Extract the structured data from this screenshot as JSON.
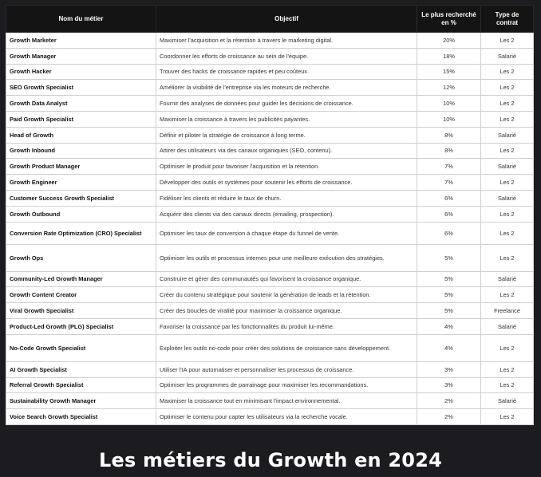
{
  "header": {
    "col_job": "Nom du métier",
    "col_objective": "Objectif",
    "col_percent": "Le plus recherché en %",
    "col_contract": "Type de contrat"
  },
  "rows": [
    {
      "job": "Growth Marketer",
      "objective": "Maximiser l'acquisition et la rétention à  travers le marketing digital.",
      "percent": "20%",
      "contract": "Les 2"
    },
    {
      "job": "Growth Manager",
      "objective": "Coordonner les efforts de croissance au sein de l'équipe.",
      "percent": "18%",
      "contract": "Salarié"
    },
    {
      "job": "Growth Hacker",
      "objective": "Trouver des hacks de croissance rapides et peu coûteux.",
      "percent": "15%",
      "contract": "Les 2"
    },
    {
      "job": "SEO Growth Specialist",
      "objective": "Améliorer la visibilité de l'entreprise via les moteurs de recherche.",
      "percent": "12%",
      "contract": "Les 2"
    },
    {
      "job": "Growth Data Analyst",
      "objective": "Fournir des analyses de données pour guider les décisions de croissance.",
      "percent": "10%",
      "contract": "Les 2"
    },
    {
      "job": "Paid Growth Specialist",
      "objective": "Maximiser la croissance à  travers les publicités payantes.",
      "percent": "10%",
      "contract": "Les 2"
    },
    {
      "job": "Head of Growth",
      "objective": "Définir et piloter la stratégie de croissance à  long terme.",
      "percent": "8%",
      "contract": "Salarié"
    },
    {
      "job": "Growth Inbound",
      "objective": "Attirer des utilisateurs via des canaux organiques (SEO, contenu).",
      "percent": "8%",
      "contract": "Les 2"
    },
    {
      "job": "Growth Product Manager",
      "objective": "Optimiser le produit pour favoriser l'acquisition et la rétention.",
      "percent": "7%",
      "contract": "Salarié"
    },
    {
      "job": "Growth Engineer",
      "objective": "Développer des outils et systèmes pour soutenir les efforts de croissance.",
      "percent": "7%",
      "contract": "Les 2"
    },
    {
      "job": "Customer Success Growth Specialist",
      "objective": "Fidéliser les clients et réduire le taux de churn.",
      "percent": "6%",
      "contract": "Salarié"
    },
    {
      "job": "Growth Outbound",
      "objective": "Acquérir des clients via des canaux directs (emailing, prospection).",
      "percent": "6%",
      "contract": "Les 2"
    },
    {
      "job": "Conversion Rate Optimization (CRO) Specialist",
      "objective": "Optimiser les taux de conversion à  chaque étape du funnel de vente.",
      "percent": "6%",
      "contract": "Les 2"
    },
    {
      "job": "Growth Ops",
      "objective": "Optimiser les outils et processus internes pour une meilleure exécution des stratégies.",
      "percent": "5%",
      "contract": "Les 2"
    },
    {
      "job": "Community-Led Growth Manager",
      "objective": "Construire et gérer des communautés qui favorisent la croissance organique.",
      "percent": "5%",
      "contract": "Salarié"
    },
    {
      "job": "Growth Content Creator",
      "objective": "Créer du contenu stratégique pour soutenir la génération de leads et la rétention.",
      "percent": "5%",
      "contract": "Les 2"
    },
    {
      "job": "Viral Growth Specialist",
      "objective": "Créer des boucles de viralité pour maximiser la croissance organique.",
      "percent": "5%",
      "contract": "Freelance"
    },
    {
      "job": "Product-Led Growth (PLG) Specialist",
      "objective": "Favoriser la croissance par les fonctionnalités du produit lui-même.",
      "percent": "4%",
      "contract": "Salarié"
    },
    {
      "job": "No-Code Growth Specialist",
      "objective": "Exploiter les outils no-code pour créer des solutions de croissance sans développement.",
      "percent": "4%",
      "contract": "Les 2"
    },
    {
      "job": "AI Growth Specialist",
      "objective": "Utiliser l'IA pour automatiser et personnaliser les processus de croissance.",
      "percent": "3%",
      "contract": "Les 2"
    },
    {
      "job": "Referral Growth Specialist",
      "objective": "Optimiser les programmes de parrainage pour maximiser les recommandations.",
      "percent": "3%",
      "contract": "Les 2"
    },
    {
      "job": "Sustainability Growth Manager",
      "objective": "Maximiser la croissance tout en minimisant l'impact environnemental.",
      "percent": "2%",
      "contract": "Salarié"
    },
    {
      "job": "Voice Search Growth Specialist",
      "objective": "Optimiser le contenu pour capter les utilisateurs via la recherche vocale.",
      "percent": "2%",
      "contract": "Les 2"
    }
  ],
  "caption": "Les métiers du Growth en 2024"
}
